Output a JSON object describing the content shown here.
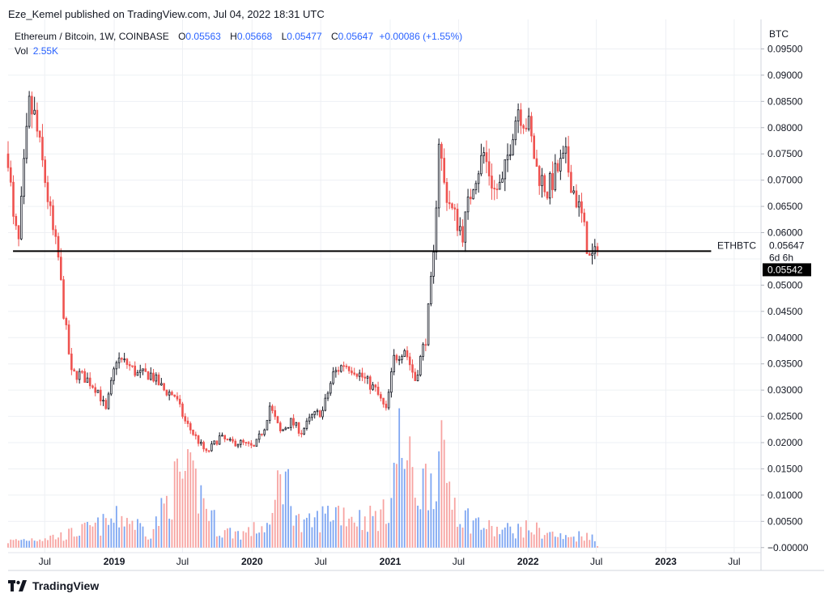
{
  "header": {
    "published": "Eze_Kemel published on TradingView.com, Jul 04, 2022 18:31 UTC"
  },
  "legend": {
    "symbol": "Ethereum / Bitcoin, 1W, COINBASE",
    "o_label": "O",
    "o_value": "0.05563",
    "h_label": "H",
    "h_value": "0.05668",
    "l_label": "L",
    "l_value": "0.05477",
    "c_label": "C",
    "c_value": "0.05647",
    "change": "+0.00086 (+1.55%)",
    "vol_label": "Vol",
    "vol_value": "2.55K"
  },
  "footer": {
    "brand": "TradingView"
  },
  "colors": {
    "up": "#131722",
    "down": "#ef5350",
    "vol_up": "#7ea6f2",
    "vol_down": "#f7a3a1",
    "grid": "#eef0f4",
    "line": "#000000"
  },
  "chart_data": {
    "type": "candlestick",
    "symbol": "ETHBTC",
    "interval": "1W",
    "exchange": "COINBASE",
    "y_unit": "BTC",
    "ylim": [
      -0.0005,
      0.1
    ],
    "y_ticks": [
      "0.09500",
      "0.09000",
      "0.08500",
      "0.08000",
      "0.07500",
      "0.07000",
      "0.06500",
      "0.06000",
      "0.05500",
      "0.05000",
      "0.04500",
      "0.04000",
      "0.03500",
      "0.03000",
      "0.02500",
      "0.02000",
      "0.01500",
      "0.01000",
      "0.00500",
      "0.00000"
    ],
    "y_tick_values": [
      0.095,
      0.09,
      0.085,
      0.08,
      0.075,
      0.07,
      0.065,
      0.06,
      0.055,
      0.05,
      0.045,
      0.04,
      0.035,
      0.03,
      0.025,
      0.02,
      0.015,
      0.01,
      0.005,
      0.0
    ],
    "x_range": [
      "2018-03-26",
      "2023-09-10"
    ],
    "x_ticks": [
      {
        "label": "Jul",
        "date": "2018-07-01"
      },
      {
        "label": "2019",
        "date": "2019-01-01"
      },
      {
        "label": "Jul",
        "date": "2019-07-01"
      },
      {
        "label": "2020",
        "date": "2020-01-01"
      },
      {
        "label": "Jul",
        "date": "2020-07-01"
      },
      {
        "label": "2021",
        "date": "2021-01-01"
      },
      {
        "label": "Jul",
        "date": "2021-07-01"
      },
      {
        "label": "2022",
        "date": "2022-01-01"
      },
      {
        "label": "Jul",
        "date": "2022-07-01"
      },
      {
        "label": "2023",
        "date": "2023-01-01"
      },
      {
        "label": "Jul",
        "date": "2023-07-01"
      }
    ],
    "horizontal_line": {
      "value": 0.05647,
      "label": "ETHBTC",
      "start": "2018-04-08",
      "end": "2023-05-01"
    },
    "last_price": {
      "value": "0.05647",
      "countdown": "6d 6h"
    },
    "marker_price": {
      "value": "0.05542"
    },
    "grid": true,
    "close_anchors": [
      {
        "date": "2018-03-26",
        "close": 0.075
      },
      {
        "date": "2018-04-09",
        "close": 0.062
      },
      {
        "date": "2018-04-23",
        "close": 0.058
      },
      {
        "date": "2018-05-07",
        "close": 0.072
      },
      {
        "date": "2018-05-21",
        "close": 0.084
      },
      {
        "date": "2018-06-04",
        "close": 0.082
      },
      {
        "date": "2018-06-18",
        "close": 0.076
      },
      {
        "date": "2018-07-02",
        "close": 0.07
      },
      {
        "date": "2018-07-23",
        "close": 0.06
      },
      {
        "date": "2018-08-06",
        "close": 0.055
      },
      {
        "date": "2018-08-20",
        "close": 0.045
      },
      {
        "date": "2018-09-10",
        "close": 0.033
      },
      {
        "date": "2018-10-01",
        "close": 0.033
      },
      {
        "date": "2018-10-22",
        "close": 0.032
      },
      {
        "date": "2018-11-19",
        "close": 0.03
      },
      {
        "date": "2018-12-10",
        "close": 0.026
      },
      {
        "date": "2019-01-07",
        "close": 0.036
      },
      {
        "date": "2019-02-04",
        "close": 0.035
      },
      {
        "date": "2019-03-04",
        "close": 0.033
      },
      {
        "date": "2019-04-08",
        "close": 0.033
      },
      {
        "date": "2019-05-13",
        "close": 0.03
      },
      {
        "date": "2019-06-10",
        "close": 0.029
      },
      {
        "date": "2019-07-08",
        "close": 0.024
      },
      {
        "date": "2019-08-05",
        "close": 0.021
      },
      {
        "date": "2019-09-02",
        "close": 0.018
      },
      {
        "date": "2019-10-07",
        "close": 0.021
      },
      {
        "date": "2019-11-04",
        "close": 0.02
      },
      {
        "date": "2019-12-02",
        "close": 0.02
      },
      {
        "date": "2020-01-06",
        "close": 0.019
      },
      {
        "date": "2020-02-03",
        "close": 0.023
      },
      {
        "date": "2020-02-17",
        "close": 0.027
      },
      {
        "date": "2020-03-16",
        "close": 0.022
      },
      {
        "date": "2020-04-13",
        "close": 0.024
      },
      {
        "date": "2020-05-11",
        "close": 0.022
      },
      {
        "date": "2020-06-08",
        "close": 0.025
      },
      {
        "date": "2020-07-06",
        "close": 0.026
      },
      {
        "date": "2020-08-03",
        "close": 0.033
      },
      {
        "date": "2020-08-31",
        "close": 0.035
      },
      {
        "date": "2020-09-28",
        "close": 0.034
      },
      {
        "date": "2020-10-26",
        "close": 0.032
      },
      {
        "date": "2020-11-23",
        "close": 0.03
      },
      {
        "date": "2020-12-21",
        "close": 0.026
      },
      {
        "date": "2021-01-11",
        "close": 0.036
      },
      {
        "date": "2021-02-08",
        "close": 0.038
      },
      {
        "date": "2021-03-08",
        "close": 0.032
      },
      {
        "date": "2021-04-05",
        "close": 0.04
      },
      {
        "date": "2021-04-26",
        "close": 0.055
      },
      {
        "date": "2021-05-10",
        "close": 0.078
      },
      {
        "date": "2021-05-24",
        "close": 0.069
      },
      {
        "date": "2021-06-14",
        "close": 0.064
      },
      {
        "date": "2021-07-12",
        "close": 0.06
      },
      {
        "date": "2021-08-09",
        "close": 0.07
      },
      {
        "date": "2021-09-06",
        "close": 0.075
      },
      {
        "date": "2021-10-04",
        "close": 0.068
      },
      {
        "date": "2021-10-25",
        "close": 0.069
      },
      {
        "date": "2021-11-22",
        "close": 0.08
      },
      {
        "date": "2021-12-06",
        "close": 0.084
      },
      {
        "date": "2022-01-03",
        "close": 0.08
      },
      {
        "date": "2022-01-24",
        "close": 0.072
      },
      {
        "date": "2022-02-21",
        "close": 0.068
      },
      {
        "date": "2022-03-21",
        "close": 0.072
      },
      {
        "date": "2022-04-11",
        "close": 0.074
      },
      {
        "date": "2022-05-02",
        "close": 0.068
      },
      {
        "date": "2022-05-23",
        "close": 0.063
      },
      {
        "date": "2022-06-13",
        "close": 0.055
      },
      {
        "date": "2022-06-27",
        "close": 0.0556
      },
      {
        "date": "2022-07-04",
        "close": 0.05647
      }
    ],
    "volume_anchors": [
      {
        "date": "2018-03-26",
        "volume": 0.0013
      },
      {
        "date": "2018-05-21",
        "volume": 0.0018
      },
      {
        "date": "2018-08-20",
        "volume": 0.0025
      },
      {
        "date": "2018-11-19",
        "volume": 0.0045
      },
      {
        "date": "2019-01-28",
        "volume": 0.0065
      },
      {
        "date": "2019-04-08",
        "volume": 0.003
      },
      {
        "date": "2019-06-24",
        "volume": 0.015
      },
      {
        "date": "2019-08-05",
        "volume": 0.013
      },
      {
        "date": "2019-10-07",
        "volume": 0.0035
      },
      {
        "date": "2019-12-09",
        "volume": 0.003
      },
      {
        "date": "2020-02-24",
        "volume": 0.005
      },
      {
        "date": "2020-03-16",
        "volume": 0.0175
      },
      {
        "date": "2020-05-11",
        "volume": 0.004
      },
      {
        "date": "2020-08-10",
        "volume": 0.008
      },
      {
        "date": "2020-10-19",
        "volume": 0.006
      },
      {
        "date": "2020-12-21",
        "volume": 0.007
      },
      {
        "date": "2021-01-25",
        "volume": 0.022
      },
      {
        "date": "2021-03-15",
        "volume": 0.012
      },
      {
        "date": "2021-05-17",
        "volume": 0.018
      },
      {
        "date": "2021-07-05",
        "volume": 0.007
      },
      {
        "date": "2021-10-04",
        "volume": 0.0035
      },
      {
        "date": "2022-01-10",
        "volume": 0.004
      },
      {
        "date": "2022-04-11",
        "volume": 0.002
      },
      {
        "date": "2022-06-13",
        "volume": 0.003
      },
      {
        "date": "2022-07-04",
        "volume": 0.0003
      }
    ]
  }
}
